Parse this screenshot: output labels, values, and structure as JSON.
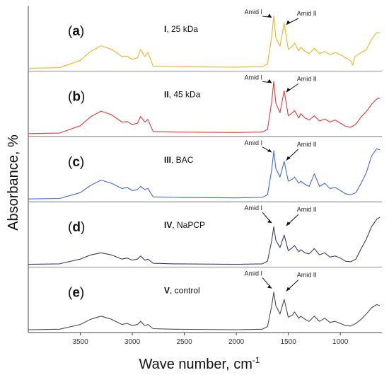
{
  "chart_data": {
    "type": "line",
    "title": "",
    "xlabel": "Wave number, cm",
    "xlabel_superscript": "-1",
    "ylabel": "Absorbance, %",
    "xlim": [
      4000,
      600
    ],
    "x_reversed": true,
    "x_ticks": [
      3500,
      3000,
      2500,
      2000,
      1500,
      1000
    ],
    "grid": false,
    "legend": "none",
    "series": [
      {
        "letter": "a",
        "label_bold": "I",
        "label_rest": ", 25 kDa",
        "color": "#F2B31E",
        "points": [
          [
            4000,
            0.0
          ],
          [
            3700,
            0.01
          ],
          [
            3500,
            0.15
          ],
          [
            3400,
            0.32
          ],
          [
            3300,
            0.43
          ],
          [
            3200,
            0.36
          ],
          [
            3100,
            0.22
          ],
          [
            3050,
            0.23
          ],
          [
            3000,
            0.17
          ],
          [
            2950,
            0.2
          ],
          [
            2920,
            0.36
          ],
          [
            2880,
            0.22
          ],
          [
            2850,
            0.3
          ],
          [
            2800,
            0.04
          ],
          [
            2600,
            0.03
          ],
          [
            2000,
            0.02
          ],
          [
            1750,
            0.03
          ],
          [
            1700,
            0.08
          ],
          [
            1660,
            0.6
          ],
          [
            1640,
            1.0
          ],
          [
            1620,
            0.58
          ],
          [
            1580,
            0.42
          ],
          [
            1540,
            0.86
          ],
          [
            1500,
            0.36
          ],
          [
            1460,
            0.42
          ],
          [
            1440,
            0.48
          ],
          [
            1400,
            0.33
          ],
          [
            1380,
            0.4
          ],
          [
            1340,
            0.32
          ],
          [
            1300,
            0.28
          ],
          [
            1250,
            0.38
          ],
          [
            1200,
            0.28
          ],
          [
            1150,
            0.32
          ],
          [
            1100,
            0.26
          ],
          [
            1050,
            0.3
          ],
          [
            1000,
            0.26
          ],
          [
            950,
            0.2
          ],
          [
            900,
            0.14
          ],
          [
            880,
            0.06
          ],
          [
            860,
            0.22
          ],
          [
            800,
            0.3
          ],
          [
            750,
            0.35
          ],
          [
            700,
            0.55
          ],
          [
            650,
            0.68
          ],
          [
            620,
            0.68
          ]
        ]
      },
      {
        "letter": "b",
        "label_bold": "II",
        "label_rest": ", 45 kDa",
        "color": "#E53935",
        "points": [
          [
            4000,
            0.0
          ],
          [
            3700,
            0.01
          ],
          [
            3500,
            0.15
          ],
          [
            3400,
            0.32
          ],
          [
            3300,
            0.43
          ],
          [
            3200,
            0.36
          ],
          [
            3100,
            0.22
          ],
          [
            3050,
            0.23
          ],
          [
            3000,
            0.17
          ],
          [
            2950,
            0.2
          ],
          [
            2920,
            0.33
          ],
          [
            2880,
            0.22
          ],
          [
            2850,
            0.27
          ],
          [
            2800,
            0.04
          ],
          [
            2600,
            0.03
          ],
          [
            2000,
            0.02
          ],
          [
            1750,
            0.03
          ],
          [
            1700,
            0.08
          ],
          [
            1660,
            0.6
          ],
          [
            1640,
            1.0
          ],
          [
            1620,
            0.58
          ],
          [
            1580,
            0.4
          ],
          [
            1540,
            0.82
          ],
          [
            1500,
            0.34
          ],
          [
            1460,
            0.4
          ],
          [
            1440,
            0.44
          ],
          [
            1400,
            0.3
          ],
          [
            1380,
            0.38
          ],
          [
            1340,
            0.3
          ],
          [
            1300,
            0.26
          ],
          [
            1250,
            0.34
          ],
          [
            1200,
            0.24
          ],
          [
            1150,
            0.28
          ],
          [
            1100,
            0.22
          ],
          [
            1050,
            0.26
          ],
          [
            1000,
            0.2
          ],
          [
            950,
            0.14
          ],
          [
            900,
            0.12
          ],
          [
            850,
            0.18
          ],
          [
            800,
            0.32
          ],
          [
            750,
            0.42
          ],
          [
            700,
            0.56
          ],
          [
            650,
            0.66
          ],
          [
            620,
            0.68
          ]
        ]
      },
      {
        "letter": "c",
        "label_bold": "III",
        "label_rest": ", BAC",
        "color": "#4169E1",
        "points": [
          [
            4000,
            0.0
          ],
          [
            3700,
            0.01
          ],
          [
            3500,
            0.12
          ],
          [
            3400,
            0.26
          ],
          [
            3300,
            0.36
          ],
          [
            3200,
            0.3
          ],
          [
            3100,
            0.2
          ],
          [
            3050,
            0.22
          ],
          [
            3000,
            0.16
          ],
          [
            2950,
            0.18
          ],
          [
            2920,
            0.24
          ],
          [
            2880,
            0.18
          ],
          [
            2850,
            0.2
          ],
          [
            2800,
            0.04
          ],
          [
            2600,
            0.03
          ],
          [
            2000,
            0.02
          ],
          [
            1750,
            0.03
          ],
          [
            1700,
            0.08
          ],
          [
            1660,
            0.55
          ],
          [
            1640,
            0.92
          ],
          [
            1620,
            0.58
          ],
          [
            1580,
            0.42
          ],
          [
            1540,
            0.72
          ],
          [
            1500,
            0.34
          ],
          [
            1460,
            0.38
          ],
          [
            1440,
            0.42
          ],
          [
            1400,
            0.3
          ],
          [
            1380,
            0.34
          ],
          [
            1340,
            0.28
          ],
          [
            1300,
            0.24
          ],
          [
            1250,
            0.48
          ],
          [
            1200,
            0.24
          ],
          [
            1150,
            0.3
          ],
          [
            1100,
            0.2
          ],
          [
            1050,
            0.22
          ],
          [
            1000,
            0.16
          ],
          [
            950,
            0.1
          ],
          [
            900,
            0.08
          ],
          [
            850,
            0.12
          ],
          [
            800,
            0.3
          ],
          [
            750,
            0.5
          ],
          [
            700,
            0.82
          ],
          [
            650,
            0.96
          ],
          [
            620,
            0.94
          ]
        ]
      },
      {
        "letter": "d",
        "label_bold": "IV",
        "label_rest": ", NaPCP",
        "color": "#3B3B6B",
        "points": [
          [
            4000,
            0.0
          ],
          [
            3700,
            0.01
          ],
          [
            3500,
            0.1
          ],
          [
            3400,
            0.18
          ],
          [
            3300,
            0.22
          ],
          [
            3200,
            0.18
          ],
          [
            3100,
            0.1
          ],
          [
            3050,
            0.12
          ],
          [
            3000,
            0.08
          ],
          [
            2950,
            0.1
          ],
          [
            2920,
            0.16
          ],
          [
            2880,
            0.08
          ],
          [
            2850,
            0.1
          ],
          [
            2800,
            0.02
          ],
          [
            2600,
            0.01
          ],
          [
            2000,
            0.0
          ],
          [
            1750,
            0.01
          ],
          [
            1700,
            0.06
          ],
          [
            1660,
            0.45
          ],
          [
            1640,
            0.72
          ],
          [
            1620,
            0.46
          ],
          [
            1580,
            0.32
          ],
          [
            1540,
            0.56
          ],
          [
            1500,
            0.26
          ],
          [
            1460,
            0.32
          ],
          [
            1440,
            0.36
          ],
          [
            1400,
            0.24
          ],
          [
            1380,
            0.28
          ],
          [
            1340,
            0.22
          ],
          [
            1300,
            0.2
          ],
          [
            1250,
            0.3
          ],
          [
            1200,
            0.18
          ],
          [
            1150,
            0.22
          ],
          [
            1100,
            0.14
          ],
          [
            1050,
            0.16
          ],
          [
            1000,
            0.12
          ],
          [
            950,
            0.06
          ],
          [
            900,
            0.05
          ],
          [
            850,
            0.1
          ],
          [
            800,
            0.3
          ],
          [
            750,
            0.48
          ],
          [
            700,
            0.72
          ],
          [
            650,
            0.86
          ],
          [
            620,
            0.9
          ]
        ]
      },
      {
        "letter": "e",
        "label_bold": "V",
        "label_rest": ", control",
        "color": "#4A4A4A",
        "points": [
          [
            4000,
            0.0
          ],
          [
            3700,
            0.01
          ],
          [
            3500,
            0.1
          ],
          [
            3400,
            0.2
          ],
          [
            3300,
            0.26
          ],
          [
            3200,
            0.2
          ],
          [
            3100,
            0.1
          ],
          [
            3050,
            0.12
          ],
          [
            3000,
            0.08
          ],
          [
            2950,
            0.1
          ],
          [
            2920,
            0.16
          ],
          [
            2880,
            0.08
          ],
          [
            2850,
            0.1
          ],
          [
            2800,
            0.02
          ],
          [
            2600,
            0.01
          ],
          [
            2000,
            0.0
          ],
          [
            1750,
            0.01
          ],
          [
            1700,
            0.06
          ],
          [
            1660,
            0.45
          ],
          [
            1640,
            0.72
          ],
          [
            1620,
            0.46
          ],
          [
            1580,
            0.3
          ],
          [
            1540,
            0.58
          ],
          [
            1500,
            0.24
          ],
          [
            1460,
            0.28
          ],
          [
            1440,
            0.34
          ],
          [
            1400,
            0.22
          ],
          [
            1380,
            0.26
          ],
          [
            1340,
            0.2
          ],
          [
            1300,
            0.16
          ],
          [
            1250,
            0.26
          ],
          [
            1200,
            0.16
          ],
          [
            1150,
            0.22
          ],
          [
            1100,
            0.14
          ],
          [
            1050,
            0.16
          ],
          [
            1000,
            0.12
          ],
          [
            950,
            0.08
          ],
          [
            900,
            0.07
          ],
          [
            850,
            0.12
          ],
          [
            800,
            0.2
          ],
          [
            750,
            0.3
          ],
          [
            700,
            0.42
          ],
          [
            650,
            0.48
          ],
          [
            620,
            0.46
          ]
        ]
      }
    ],
    "annotations": [
      {
        "text": "Amid I",
        "x": 1640
      },
      {
        "text": "Amid II",
        "x": 1540
      }
    ]
  }
}
